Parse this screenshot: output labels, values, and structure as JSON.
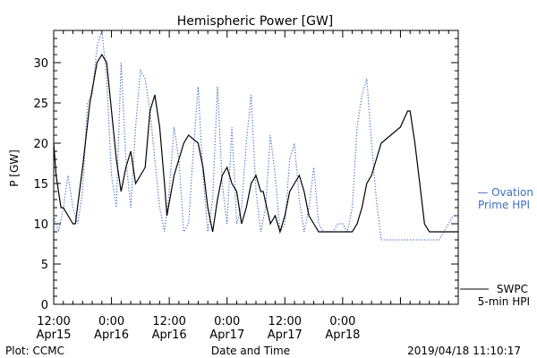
{
  "chart_data": {
    "type": "line",
    "title": "Hemispheric Power [GW]",
    "ylabel": "P [GW]",
    "xlabel": "Date and Time",
    "ylim": [
      0,
      34
    ],
    "xlim_hours": [
      12,
      96
    ],
    "y_ticks": [
      "0",
      "5",
      "10",
      "15",
      "20",
      "25",
      "30"
    ],
    "x_ticks": [
      {
        "time": "12:00",
        "date": "Apr15"
      },
      {
        "time": "0:00",
        "date": "Apr16"
      },
      {
        "time": "12:00",
        "date": "Apr16"
      },
      {
        "time": "0:00",
        "date": "Apr17"
      },
      {
        "time": "12:00",
        "date": "Apr17"
      },
      {
        "time": "0:00",
        "date": "Apr18"
      }
    ],
    "series": [
      {
        "name": "SWPC 5-min HPI",
        "color": "#000000",
        "style": "solid",
        "x_hours": [
          12,
          12.5,
          13,
          13.5,
          14,
          15,
          16,
          16.5,
          18,
          19.5,
          21,
          22,
          23,
          24,
          25,
          26,
          27,
          28,
          29,
          30,
          31,
          32,
          33,
          34,
          35,
          35.5,
          37,
          39,
          40,
          42,
          43,
          44,
          45,
          46,
          47,
          48,
          49,
          50,
          51,
          52,
          53,
          54,
          55,
          55.5,
          57,
          58,
          59,
          60,
          61,
          62,
          63,
          64,
          65,
          66,
          67,
          67.5,
          69,
          70,
          71,
          72,
          73,
          74,
          75,
          76,
          77,
          78,
          80,
          84,
          85.5,
          86,
          87,
          88,
          89,
          90,
          91,
          92,
          93,
          94,
          96
        ],
        "values": [
          20,
          16,
          14,
          12,
          12,
          11,
          10,
          10,
          17,
          25,
          30,
          31,
          30,
          24,
          18,
          14,
          17,
          19,
          15,
          16,
          17,
          24,
          26,
          22,
          15,
          11,
          16,
          20,
          21,
          20,
          17,
          12,
          9,
          13,
          16,
          17,
          15,
          14,
          10,
          12,
          15,
          16,
          14,
          14,
          10,
          11,
          9,
          11,
          14,
          15,
          16,
          14,
          11,
          10,
          9,
          9,
          9,
          9,
          9,
          9,
          9,
          9,
          10,
          12,
          15,
          16,
          20,
          22,
          24,
          24,
          20,
          15,
          10,
          9,
          9,
          9,
          9,
          9,
          9
        ]
      },
      {
        "name": "Ovation Prime HPI",
        "color": "#3f6fbf",
        "style": "dotted",
        "x_hours": [
          12,
          13,
          14,
          15,
          16,
          17,
          18,
          19,
          20,
          21,
          22,
          23,
          24,
          25,
          26,
          27,
          28,
          29,
          30,
          31,
          32,
          33,
          34,
          35,
          36,
          37,
          38,
          39,
          40,
          41,
          42,
          43,
          44,
          45,
          46,
          47,
          48,
          49,
          50,
          51,
          52,
          53,
          54,
          55,
          56,
          57,
          58,
          59,
          60,
          61,
          62,
          63,
          64,
          65,
          66,
          67,
          68,
          69,
          70,
          71,
          72,
          73,
          74,
          75,
          76,
          77,
          78,
          79,
          80,
          81,
          82,
          83,
          84,
          85,
          86,
          87,
          88,
          89,
          90,
          91,
          92,
          93,
          94,
          95,
          96
        ],
        "values": [
          11,
          9,
          12,
          16,
          12,
          10,
          14,
          25,
          26,
          32,
          34,
          28,
          16,
          12,
          30,
          18,
          12,
          22,
          29,
          28,
          24,
          18,
          12,
          9,
          14,
          22,
          18,
          9,
          10,
          19,
          27,
          16,
          9,
          13,
          27,
          15,
          10,
          22,
          10,
          12,
          20,
          26,
          14,
          9,
          12,
          21,
          16,
          9,
          10,
          18,
          20,
          13,
          9,
          12,
          17,
          10,
          9,
          9,
          9,
          10,
          10,
          9,
          12,
          22,
          26,
          28,
          20,
          13,
          8,
          8,
          8,
          8,
          8,
          8,
          8,
          8,
          8,
          8,
          8,
          8,
          8,
          9,
          10,
          11,
          11
        ]
      }
    ],
    "legend": {
      "ovation_line1": "— Ovation",
      "ovation_line2": "Prime HPI",
      "swpc_line1": "SWPC",
      "swpc_line2": "5-min HPI"
    }
  },
  "footer": {
    "left": "Plot: CCMC",
    "center": "Date and Time",
    "right": "2019/04/18 11:10:17"
  }
}
